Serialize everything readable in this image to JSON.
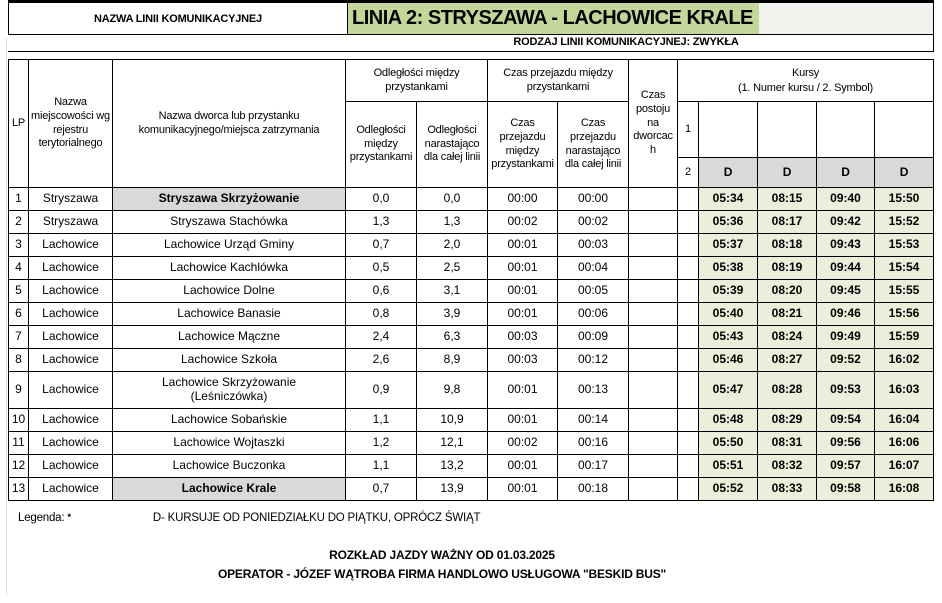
{
  "page": {
    "label_nazwa_linii": "NAZWA LINII KOMUNIKACYJNEJ",
    "title": "LINIA 2: STRYSZAWA - LACHOWICE KRALE",
    "subtitle": "RODZAJ LINII KOMUNIKACYJNEJ: ZWYKŁA"
  },
  "colors": {
    "title_bg": "#c4d79b",
    "times_bg": "#ebeeda",
    "highlight_bg": "#d9d9d9",
    "border": "#000000"
  },
  "table": {
    "headers": {
      "lp": "LP",
      "town": "Nazwa miejscowości wg rejestru terytorialnego",
      "stop": "Nazwa dworca lub przystanku komunikacyjnego/miejsca zatrzymania",
      "dist_group": "Odległości między przystankami",
      "dist_between": "Odległości między przystankami",
      "dist_cum": "Odległości narastająco dla całej linii",
      "time_group": "Czas przejazdu między przystankami",
      "time_between": "Czas przejazdu między przystankami",
      "time_cum": "Czas przejazdu narastająco dla całej linii",
      "dwell": "Czas postoju na dworcach",
      "kursy_title": "Kursy",
      "kursy_subtitle": "(1. Numer kursu / 2. Symbol)",
      "row1_label": "1",
      "row2_label": "2",
      "course_numbers": [
        "",
        "",
        "",
        ""
      ],
      "course_symbols": [
        "D",
        "D",
        "D",
        "D"
      ]
    },
    "rows": [
      {
        "lp": "1",
        "town": "Stryszawa",
        "stop": "Stryszawa Skrzyżowanie",
        "highlight": true,
        "dist_between": "0,0",
        "dist_cum": "0,0",
        "time_between": "00:00",
        "time_cum": "00:00",
        "dwell": "",
        "times": [
          "05:34",
          "08:15",
          "09:40",
          "15:50"
        ]
      },
      {
        "lp": "2",
        "town": "Stryszawa",
        "stop": "Stryszawa Stachówka",
        "highlight": false,
        "dist_between": "1,3",
        "dist_cum": "1,3",
        "time_between": "00:02",
        "time_cum": "00:02",
        "dwell": "",
        "times": [
          "05:36",
          "08:17",
          "09:42",
          "15:52"
        ]
      },
      {
        "lp": "3",
        "town": "Lachowice",
        "stop": "Lachowice Urząd Gminy",
        "highlight": false,
        "dist_between": "0,7",
        "dist_cum": "2,0",
        "time_between": "00:01",
        "time_cum": "00:03",
        "dwell": "",
        "times": [
          "05:37",
          "08:18",
          "09:43",
          "15:53"
        ]
      },
      {
        "lp": "4",
        "town": "Lachowice",
        "stop": "Lachowice Kachlówka",
        "highlight": false,
        "dist_between": "0,5",
        "dist_cum": "2,5",
        "time_between": "00:01",
        "time_cum": "00:04",
        "dwell": "",
        "times": [
          "05:38",
          "08:19",
          "09:44",
          "15:54"
        ]
      },
      {
        "lp": "5",
        "town": "Lachowice",
        "stop": "Lachowice Dolne",
        "highlight": false,
        "dist_between": "0,6",
        "dist_cum": "3,1",
        "time_between": "00:01",
        "time_cum": "00:05",
        "dwell": "",
        "times": [
          "05:39",
          "08:20",
          "09:45",
          "15:55"
        ]
      },
      {
        "lp": "6",
        "town": "Lachowice",
        "stop": "Lachowice Banasie",
        "highlight": false,
        "dist_between": "0,8",
        "dist_cum": "3,9",
        "time_between": "00:01",
        "time_cum": "00:06",
        "dwell": "",
        "times": [
          "05:40",
          "08:21",
          "09:46",
          "15:56"
        ]
      },
      {
        "lp": "7",
        "town": "Lachowice",
        "stop": "Lachowice Mączne",
        "highlight": false,
        "dist_between": "2,4",
        "dist_cum": "6,3",
        "time_between": "00:03",
        "time_cum": "00:09",
        "dwell": "",
        "times": [
          "05:43",
          "08:24",
          "09:49",
          "15:59"
        ]
      },
      {
        "lp": "8",
        "town": "Lachowice",
        "stop": "Lachowice Szkoła",
        "highlight": false,
        "dist_between": "2,6",
        "dist_cum": "8,9",
        "time_between": "00:03",
        "time_cum": "00:12",
        "dwell": "",
        "times": [
          "05:46",
          "08:27",
          "09:52",
          "16:02"
        ]
      },
      {
        "lp": "9",
        "town": "Lachowice",
        "stop": "Lachowice Skrzyżowanie",
        "stop_line2": "(Leśniczówka)",
        "highlight": false,
        "dist_between": "0,9",
        "dist_cum": "9,8",
        "time_between": "00:01",
        "time_cum": "00:13",
        "dwell": "",
        "times": [
          "05:47",
          "08:28",
          "09:53",
          "16:03"
        ]
      },
      {
        "lp": "10",
        "town": "Lachowice",
        "stop": "Lachowice Sobańskie",
        "highlight": false,
        "dist_between": "1,1",
        "dist_cum": "10,9",
        "time_between": "00:01",
        "time_cum": "00:14",
        "dwell": "",
        "times": [
          "05:48",
          "08:29",
          "09:54",
          "16:04"
        ]
      },
      {
        "lp": "11",
        "town": "Lachowice",
        "stop": "Lachowice Wojtaszki",
        "highlight": false,
        "dist_between": "1,2",
        "dist_cum": "12,1",
        "time_between": "00:02",
        "time_cum": "00:16",
        "dwell": "",
        "times": [
          "05:50",
          "08:31",
          "09:56",
          "16:06"
        ]
      },
      {
        "lp": "12",
        "town": "Lachowice",
        "stop": "Lachowice Buczonka",
        "highlight": false,
        "dist_between": "1,1",
        "dist_cum": "13,2",
        "time_between": "00:01",
        "time_cum": "00:17",
        "dwell": "",
        "times": [
          "05:51",
          "08:32",
          "09:57",
          "16:07"
        ]
      },
      {
        "lp": "13",
        "town": "Lachowice",
        "stop": "Lachowice Krale",
        "highlight": true,
        "dist_between": "0,7",
        "dist_cum": "13,9",
        "time_between": "00:01",
        "time_cum": "00:18",
        "dwell": "",
        "times": [
          "05:52",
          "08:33",
          "09:58",
          "16:08"
        ]
      }
    ]
  },
  "legend": {
    "label": "Legenda:",
    "mark": "*",
    "text": "D- KURSUJE OD PONIEDZIAŁKU DO PIĄTKU, OPRÓCZ ŚWIĄT"
  },
  "footer": {
    "line1": "ROZKŁAD JAZDY WAŻNY OD 01.03.2025",
    "line2": "OPERATOR - JÓZEF WĄTROBA FIRMA HANDLOWO USŁUGOWA \"BESKID BUS\""
  }
}
